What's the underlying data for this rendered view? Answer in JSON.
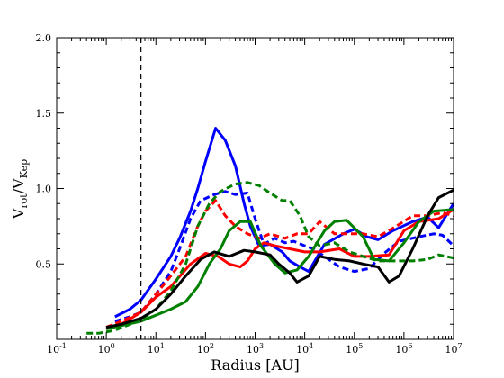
{
  "chart_data": {
    "type": "line",
    "xscale": "log",
    "xlim": [
      0.1,
      10000000
    ],
    "ylim": [
      0.0,
      2.0
    ],
    "xlabel_main": "Radius [AU]",
    "ylabel": {
      "v": "V",
      "rot": "rot",
      "slash": "/V",
      "kep": "Kep"
    },
    "x_ticks": [
      {
        "base": "10",
        "exp": "-1",
        "value": 0.1
      },
      {
        "base": "10",
        "exp": "0",
        "value": 1
      },
      {
        "base": "10",
        "exp": "1",
        "value": 10
      },
      {
        "base": "10",
        "exp": "2",
        "value": 100
      },
      {
        "base": "10",
        "exp": "3",
        "value": 1000
      },
      {
        "base": "10",
        "exp": "4",
        "value": 10000
      },
      {
        "base": "10",
        "exp": "5",
        "value": 100000
      },
      {
        "base": "10",
        "exp": "6",
        "value": 1000000
      },
      {
        "base": "10",
        "exp": "7",
        "value": 10000000
      }
    ],
    "y_ticks": [
      {
        "label": "0.5",
        "value": 0.5
      },
      {
        "label": "1.0",
        "value": 1.0
      },
      {
        "label": "1.5",
        "value": 1.5
      },
      {
        "label": "2.0",
        "value": 2.0
      }
    ],
    "vline": {
      "x": 5,
      "style": "dashed",
      "color": "#000000"
    },
    "series": [
      {
        "color": "#0000ff",
        "style": "solid",
        "points": [
          [
            1.5,
            0.15
          ],
          [
            3,
            0.2
          ],
          [
            5,
            0.26
          ],
          [
            10,
            0.4
          ],
          [
            20,
            0.55
          ],
          [
            30,
            0.67
          ],
          [
            50,
            0.85
          ],
          [
            70,
            1.0
          ],
          [
            100,
            1.18
          ],
          [
            160,
            1.4
          ],
          [
            250,
            1.32
          ],
          [
            400,
            1.15
          ],
          [
            600,
            0.9
          ],
          [
            800,
            0.75
          ],
          [
            1200,
            0.62
          ],
          [
            2000,
            0.63
          ],
          [
            3500,
            0.58
          ],
          [
            5000,
            0.52
          ],
          [
            8000,
            0.48
          ],
          [
            12000,
            0.45
          ],
          [
            25000,
            0.63
          ],
          [
            60000,
            0.7
          ],
          [
            100000,
            0.73
          ],
          [
            180000,
            0.68
          ],
          [
            300000,
            0.66
          ],
          [
            600000,
            0.72
          ],
          [
            1500000,
            0.78
          ],
          [
            3000000,
            0.81
          ],
          [
            5000000,
            0.74
          ],
          [
            10000000,
            0.9
          ]
        ]
      },
      {
        "color": "#0000ff",
        "style": "dashed",
        "points": [
          [
            1.5,
            0.12
          ],
          [
            3,
            0.15
          ],
          [
            5,
            0.18
          ],
          [
            10,
            0.3
          ],
          [
            20,
            0.45
          ],
          [
            30,
            0.6
          ],
          [
            50,
            0.8
          ],
          [
            80,
            0.92
          ],
          [
            150,
            0.96
          ],
          [
            250,
            0.98
          ],
          [
            400,
            0.96
          ],
          [
            700,
            0.97
          ],
          [
            1000,
            0.8
          ],
          [
            1500,
            0.63
          ],
          [
            2500,
            0.67
          ],
          [
            4000,
            0.64
          ],
          [
            6000,
            0.65
          ],
          [
            10000,
            0.62
          ],
          [
            15000,
            0.6
          ],
          [
            25000,
            0.55
          ],
          [
            50000,
            0.48
          ],
          [
            100000,
            0.45
          ],
          [
            200000,
            0.47
          ],
          [
            400000,
            0.57
          ],
          [
            800000,
            0.65
          ],
          [
            2000000,
            0.68
          ],
          [
            4000000,
            0.7
          ],
          [
            6000000,
            0.69
          ],
          [
            10000000,
            0.62
          ]
        ]
      },
      {
        "color": "#ff0000",
        "style": "solid",
        "points": [
          [
            1,
            0.07
          ],
          [
            2,
            0.1
          ],
          [
            5,
            0.18
          ],
          [
            10,
            0.28
          ],
          [
            20,
            0.35
          ],
          [
            50,
            0.5
          ],
          [
            100,
            0.57
          ],
          [
            180,
            0.55
          ],
          [
            300,
            0.5
          ],
          [
            500,
            0.48
          ],
          [
            700,
            0.52
          ],
          [
            1000,
            0.6
          ],
          [
            1500,
            0.64
          ],
          [
            2500,
            0.62
          ],
          [
            5000,
            0.6
          ],
          [
            10000,
            0.58
          ],
          [
            20000,
            0.58
          ],
          [
            50000,
            0.6
          ],
          [
            100000,
            0.55
          ],
          [
            200000,
            0.55
          ],
          [
            500000,
            0.56
          ],
          [
            1000000,
            0.72
          ],
          [
            2000000,
            0.78
          ],
          [
            5000000,
            0.8
          ],
          [
            10000000,
            0.86
          ]
        ]
      },
      {
        "color": "#ff0000",
        "style": "dashed",
        "points": [
          [
            1,
            0.08
          ],
          [
            2,
            0.12
          ],
          [
            5,
            0.18
          ],
          [
            10,
            0.3
          ],
          [
            20,
            0.42
          ],
          [
            40,
            0.55
          ],
          [
            70,
            0.75
          ],
          [
            100,
            0.85
          ],
          [
            160,
            0.92
          ],
          [
            250,
            0.82
          ],
          [
            400,
            0.75
          ],
          [
            700,
            0.7
          ],
          [
            1200,
            0.67
          ],
          [
            2000,
            0.7
          ],
          [
            4000,
            0.67
          ],
          [
            7000,
            0.7
          ],
          [
            12000,
            0.7
          ],
          [
            20000,
            0.78
          ],
          [
            40000,
            0.7
          ],
          [
            80000,
            0.7
          ],
          [
            150000,
            0.7
          ],
          [
            300000,
            0.68
          ],
          [
            700000,
            0.75
          ],
          [
            1500000,
            0.82
          ],
          [
            3000000,
            0.82
          ],
          [
            6000000,
            0.84
          ],
          [
            10000000,
            0.82
          ]
        ]
      },
      {
        "color": "#008000",
        "style": "solid",
        "points": [
          [
            1,
            0.07
          ],
          [
            2,
            0.09
          ],
          [
            5,
            0.12
          ],
          [
            10,
            0.16
          ],
          [
            20,
            0.2
          ],
          [
            40,
            0.25
          ],
          [
            70,
            0.35
          ],
          [
            120,
            0.5
          ],
          [
            200,
            0.6
          ],
          [
            300,
            0.72
          ],
          [
            500,
            0.78
          ],
          [
            800,
            0.78
          ],
          [
            1300,
            0.62
          ],
          [
            2500,
            0.5
          ],
          [
            4000,
            0.44
          ],
          [
            7000,
            0.46
          ],
          [
            12000,
            0.55
          ],
          [
            25000,
            0.72
          ],
          [
            40000,
            0.78
          ],
          [
            70000,
            0.79
          ],
          [
            150000,
            0.68
          ],
          [
            250000,
            0.53
          ],
          [
            500000,
            0.52
          ],
          [
            1000000,
            0.64
          ],
          [
            2000000,
            0.78
          ],
          [
            4000000,
            0.85
          ],
          [
            10000000,
            0.86
          ]
        ]
      },
      {
        "color": "#008000",
        "style": "dashed",
        "points": [
          [
            0.4,
            0.04
          ],
          [
            0.7,
            0.04
          ],
          [
            1.5,
            0.06
          ],
          [
            3,
            0.1
          ],
          [
            5,
            0.13
          ],
          [
            10,
            0.2
          ],
          [
            20,
            0.32
          ],
          [
            40,
            0.5
          ],
          [
            70,
            0.75
          ],
          [
            120,
            0.9
          ],
          [
            200,
            0.98
          ],
          [
            400,
            1.03
          ],
          [
            700,
            1.04
          ],
          [
            1200,
            1.02
          ],
          [
            2000,
            0.97
          ],
          [
            3500,
            0.92
          ],
          [
            5000,
            0.92
          ],
          [
            8000,
            0.82
          ],
          [
            12000,
            0.68
          ],
          [
            20000,
            0.62
          ],
          [
            40000,
            0.64
          ],
          [
            80000,
            0.58
          ],
          [
            150000,
            0.55
          ],
          [
            300000,
            0.52
          ],
          [
            700000,
            0.52
          ],
          [
            1500000,
            0.52
          ],
          [
            3000000,
            0.53
          ],
          [
            5000000,
            0.56
          ],
          [
            10000000,
            0.54
          ]
        ]
      },
      {
        "color": "#000000",
        "style": "solid",
        "points": [
          [
            1,
            0.08
          ],
          [
            2,
            0.1
          ],
          [
            5,
            0.14
          ],
          [
            10,
            0.2
          ],
          [
            20,
            0.3
          ],
          [
            40,
            0.42
          ],
          [
            80,
            0.53
          ],
          [
            150,
            0.58
          ],
          [
            300,
            0.55
          ],
          [
            600,
            0.59
          ],
          [
            1000,
            0.58
          ],
          [
            2000,
            0.56
          ],
          [
            3000,
            0.5
          ],
          [
            5000,
            0.44
          ],
          [
            7000,
            0.38
          ],
          [
            12000,
            0.42
          ],
          [
            20000,
            0.55
          ],
          [
            40000,
            0.53
          ],
          [
            80000,
            0.52
          ],
          [
            150000,
            0.5
          ],
          [
            300000,
            0.48
          ],
          [
            500000,
            0.38
          ],
          [
            800000,
            0.42
          ],
          [
            1500000,
            0.6
          ],
          [
            3000000,
            0.82
          ],
          [
            5000000,
            0.94
          ],
          [
            10000000,
            0.99
          ]
        ]
      }
    ]
  }
}
